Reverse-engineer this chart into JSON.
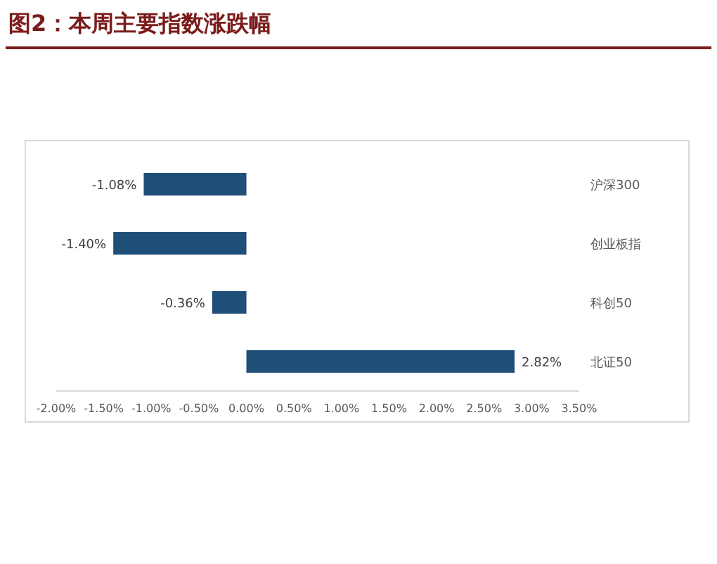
{
  "chart_data": {
    "type": "bar",
    "orientation": "horizontal",
    "title": "图2：本周主要指数涨跌幅",
    "categories": [
      "沪深300",
      "创业板指",
      "科创50",
      "北证50"
    ],
    "values": [
      -1.08,
      -1.4,
      -0.36,
      2.82
    ],
    "value_labels": [
      "-1.08%",
      "-1.40%",
      "-0.36%",
      "2.82%"
    ],
    "color": "#1f4e79",
    "xlim": [
      -2,
      3.5
    ],
    "xticks": [
      {
        "value": -2,
        "label": "-2.00%"
      },
      {
        "value": -1.5,
        "label": "-1.50%"
      },
      {
        "value": -1,
        "label": "-1.00%"
      },
      {
        "value": -0.5,
        "label": "-0.50%"
      },
      {
        "value": 0,
        "label": "0.00%"
      },
      {
        "value": 0.5,
        "label": "0.50%"
      },
      {
        "value": 1,
        "label": "1.00%"
      },
      {
        "value": 1.5,
        "label": "1.50%"
      },
      {
        "value": 2,
        "label": "2.00%"
      },
      {
        "value": 2.5,
        "label": "2.50%"
      },
      {
        "value": 3,
        "label": "3.00%"
      },
      {
        "value": 3.5,
        "label": "3.50%"
      }
    ]
  }
}
